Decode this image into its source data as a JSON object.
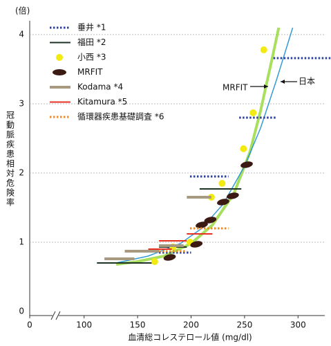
{
  "chart_data": {
    "type": "segments",
    "y_label": "冠動脈疾患相対危険率",
    "y_unit": "(倍)",
    "x_label": "血清総コレステロール値 (mg/dl)",
    "xlim": [
      0,
      325
    ],
    "x_break": [
      0,
      75
    ],
    "xticks": [
      0,
      100,
      150,
      200,
      250,
      300
    ],
    "ylim": [
      0,
      4.2
    ],
    "yticks": [
      0,
      1,
      2,
      3,
      4
    ],
    "grid": true,
    "legend": "upper left",
    "series": [
      {
        "name": "垂井 *1",
        "color": "#2b3f9e",
        "style": "dotted",
        "x_start": [
          170,
          199,
          245,
          277
        ],
        "x_end": [
          200,
          235,
          280,
          331
        ],
        "values": [
          0.85,
          1.95,
          2.8,
          3.66
        ]
      },
      {
        "name": "福田 *2",
        "color": "#1d3324",
        "style": "solid",
        "x_start": [
          112,
          170,
          208
        ],
        "x_end": [
          167,
          196,
          247
        ],
        "values": [
          0.7,
          0.93,
          1.77
        ]
      },
      {
        "name": "小西 *3",
        "color": "#f2ea10",
        "style": "dot",
        "x": [
          166,
          183,
          199,
          219,
          229,
          249,
          258,
          268
        ],
        "values": [
          0.72,
          0.93,
          1.0,
          1.65,
          1.85,
          2.35,
          2.87,
          3.78
        ]
      },
      {
        "name": "MRFIT",
        "color": "#3a1a12",
        "style": "ellipse",
        "x": [
          180,
          205,
          210,
          218,
          230,
          239,
          252
        ],
        "values": [
          0.78,
          0.97,
          1.25,
          1.32,
          1.58,
          1.67,
          2.12
        ]
      },
      {
        "name": "Kodama *4",
        "color": "#a89a80",
        "style": "thick",
        "x_start": [
          119,
          138,
          170,
          196
        ],
        "x_end": [
          147,
          170,
          193,
          219
        ],
        "values": [
          0.76,
          0.87,
          0.95,
          1.65
        ]
      },
      {
        "name": "Kitamura *5",
        "color": "#e53022",
        "style": "solid",
        "x_start": [
          160,
          170,
          196
        ],
        "x_end": [
          182,
          196,
          220
        ],
        "values": [
          0.9,
          1.02,
          1.12
        ]
      },
      {
        "name": "循環器疾患基礎調査 *6",
        "color": "#f08a24",
        "style": "dotted",
        "x_start": [
          170,
          199
        ],
        "x_end": [
          196,
          235
        ],
        "values": [
          0.87,
          1.2
        ]
      }
    ],
    "curves": [
      {
        "label": "MRFIT",
        "color": "#9fdc4a",
        "width": 4,
        "x": [
          130,
          150,
          175,
          200,
          220,
          240,
          255,
          265,
          275,
          282
        ],
        "values": [
          0.68,
          0.72,
          0.8,
          0.98,
          1.25,
          1.7,
          2.3,
          2.9,
          3.6,
          4.1
        ]
      },
      {
        "label": "日本",
        "color": "#1f8fd0",
        "width": 1.5,
        "x": [
          130,
          160,
          190,
          210,
          230,
          250,
          265,
          280,
          295
        ],
        "values": [
          0.7,
          0.8,
          0.98,
          1.2,
          1.55,
          2.1,
          2.65,
          3.35,
          4.1
        ]
      }
    ]
  }
}
